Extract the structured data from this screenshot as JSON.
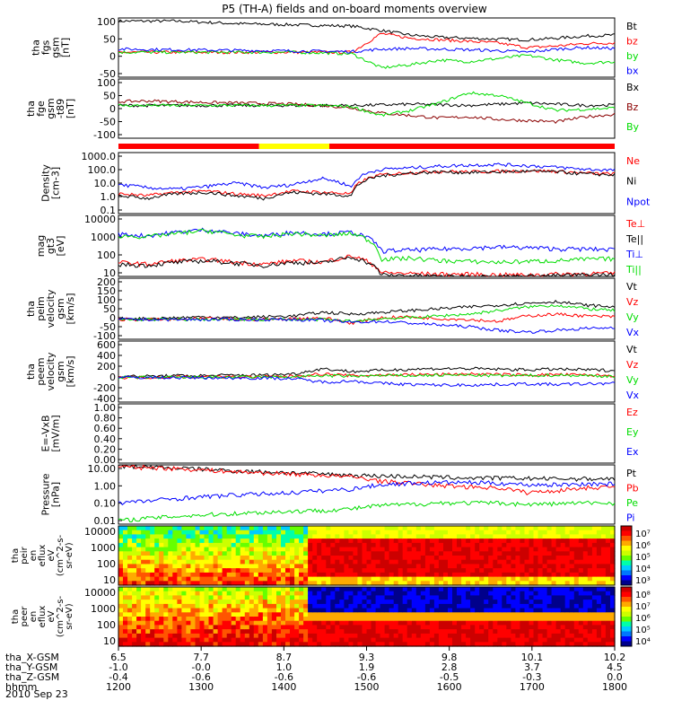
{
  "title": "P5 (TH-A) fields and on-board moments overview",
  "date": "2010 Sep 23",
  "chart_data": [
    {
      "type": "line",
      "ylabel": [
        "tha",
        "fgs",
        "gsm",
        "[nT]"
      ],
      "yticks": [
        "100",
        "50",
        "0",
        "-50"
      ],
      "ylim": [
        -80,
        110
      ],
      "series": [
        {
          "name": "Bt",
          "color": "#000000",
          "values": [
            100,
            100,
            100,
            96,
            92,
            90,
            88,
            86,
            84,
            70,
            55,
            48,
            45,
            42,
            40,
            45,
            52,
            55
          ]
        },
        {
          "name": "bz",
          "color": "#ff0000",
          "values": [
            0,
            0,
            0,
            0,
            0,
            0,
            0,
            0,
            0,
            60,
            45,
            40,
            35,
            30,
            15,
            20,
            28,
            30
          ]
        },
        {
          "name": "by",
          "color": "#00dd00",
          "values": [
            0,
            0,
            0,
            0,
            0,
            0,
            0,
            -2,
            -5,
            -50,
            -40,
            -25,
            -30,
            -20,
            -10,
            -25,
            -35,
            -30
          ]
        },
        {
          "name": "bx",
          "color": "#0000ff",
          "values": [
            10,
            9,
            8,
            7,
            6,
            5,
            4,
            3,
            2,
            10,
            12,
            10,
            8,
            5,
            0,
            10,
            15,
            12
          ]
        }
      ]
    },
    {
      "type": "line",
      "ylabel": [
        "tha",
        "fge",
        "gsm",
        "-t89",
        "[nT]"
      ],
      "yticks": [
        "100",
        "50",
        "0",
        "-50",
        "-100"
      ],
      "ylim": [
        -130,
        105
      ],
      "series": [
        {
          "name": "Bx",
          "color": "#000000",
          "values": [
            0,
            0,
            0,
            0,
            0,
            0,
            0,
            0,
            0,
            2,
            5,
            3,
            0,
            5,
            10,
            5,
            0,
            2
          ]
        },
        {
          "name": "Bz",
          "color": "#8b0000",
          "values": [
            15,
            18,
            15,
            12,
            10,
            8,
            5,
            0,
            -10,
            -30,
            -40,
            -50,
            -45,
            -55,
            -60,
            -65,
            -45,
            -35
          ]
        },
        {
          "name": "By",
          "color": "#00dd00",
          "values": [
            0,
            0,
            0,
            0,
            0,
            0,
            0,
            0,
            -5,
            -40,
            -20,
            10,
            50,
            40,
            10,
            -20,
            -15,
            -10
          ]
        }
      ]
    },
    {
      "type": "line",
      "ylabel": [
        "Density",
        "[cm-3]"
      ],
      "yticks": [
        "1000.0",
        "100.0",
        "10.0",
        "1.0",
        "0.1"
      ],
      "ylim": [
        0.1,
        1000
      ],
      "log": true,
      "series": [
        {
          "name": "Ne",
          "color": "#ff0000",
          "values": [
            2,
            1.5,
            2.5,
            3,
            2,
            1.5,
            3,
            2.5,
            2,
            35,
            50,
            60,
            55,
            60,
            65,
            60,
            45,
            40
          ]
        },
        {
          "name": "Ni",
          "color": "#000000",
          "values": [
            1.5,
            1,
            2,
            2.5,
            1.5,
            1,
            2.5,
            2,
            1.5,
            30,
            45,
            55,
            50,
            55,
            60,
            55,
            40,
            35
          ]
        },
        {
          "name": "Npot",
          "color": "#0000ff",
          "values": [
            8,
            5,
            4,
            6,
            10,
            5,
            8,
            20,
            5,
            80,
            100,
            130,
            150,
            170,
            140,
            110,
            80,
            70
          ]
        }
      ]
    },
    {
      "type": "line",
      "ylabel": [
        "mag",
        "gt3",
        "[eV]"
      ],
      "yticks": [
        "10000",
        "1000",
        "100",
        "10"
      ],
      "ylim": [
        10,
        10000
      ],
      "log": true,
      "series": [
        {
          "name": "Te⊥",
          "color": "#ff0000",
          "values": [
            50,
            40,
            60,
            70,
            50,
            40,
            60,
            50,
            100,
            15,
            14,
            13,
            13,
            12,
            12,
            13,
            14,
            14
          ]
        },
        {
          "name": "Te||",
          "color": "#000000",
          "values": [
            40,
            35,
            50,
            60,
            45,
            35,
            50,
            45,
            90,
            12,
            11,
            10,
            10,
            10,
            10,
            11,
            12,
            12
          ]
        },
        {
          "name": "Ti⊥",
          "color": "#0000ff",
          "values": [
            1200,
            1000,
            1500,
            2000,
            1300,
            1000,
            1500,
            1200,
            1500,
            180,
            200,
            220,
            250,
            280,
            260,
            230,
            220,
            210
          ]
        },
        {
          "name": "Ti||",
          "color": "#00dd00",
          "values": [
            1000,
            900,
            1300,
            1800,
            1100,
            900,
            1300,
            1000,
            1300,
            70,
            80,
            60,
            55,
            50,
            55,
            60,
            70,
            75
          ]
        }
      ]
    },
    {
      "type": "line",
      "ylabel": [
        "tha",
        "peim",
        "velocity",
        "gsm",
        "[km/s]"
      ],
      "yticks": [
        "200",
        "150",
        "100",
        "50",
        "0",
        "-50",
        "-100"
      ],
      "ylim": [
        -110,
        230
      ],
      "series": [
        {
          "name": "Vt",
          "color": "#000000",
          "values": [
            5,
            5,
            10,
            15,
            10,
            15,
            20,
            40,
            30,
            40,
            50,
            60,
            70,
            80,
            90,
            100,
            80,
            70
          ]
        },
        {
          "name": "Vz",
          "color": "#ff0000",
          "values": [
            0,
            0,
            0,
            5,
            0,
            0,
            5,
            10,
            -20,
            10,
            15,
            5,
            0,
            -10,
            20,
            30,
            20,
            15
          ]
        },
        {
          "name": "Vy",
          "color": "#00dd00",
          "values": [
            0,
            0,
            0,
            0,
            0,
            0,
            0,
            0,
            -10,
            5,
            10,
            20,
            30,
            50,
            70,
            80,
            60,
            50
          ]
        },
        {
          "name": "Vx",
          "color": "#0000ff",
          "values": [
            0,
            0,
            0,
            0,
            0,
            0,
            0,
            -5,
            -15,
            -10,
            -20,
            -30,
            -40,
            -60,
            -70,
            -60,
            -50,
            -45
          ]
        }
      ]
    },
    {
      "type": "line",
      "ylabel": [
        "tha",
        "peem",
        "velocity",
        "gsm",
        "[km/s]"
      ],
      "yticks": [
        "600",
        "400",
        "200",
        "0",
        "-200",
        "-400"
      ],
      "ylim": [
        -420,
        620
      ],
      "series": [
        {
          "name": "Vt",
          "color": "#000000",
          "values": [
            20,
            20,
            30,
            30,
            40,
            40,
            60,
            150,
            100,
            120,
            140,
            150,
            150,
            140,
            130,
            140,
            130,
            120
          ]
        },
        {
          "name": "Vz",
          "color": "#ff0000",
          "values": [
            0,
            0,
            10,
            10,
            10,
            10,
            20,
            60,
            30,
            40,
            50,
            50,
            60,
            50,
            40,
            50,
            40,
            30
          ]
        },
        {
          "name": "Vy",
          "color": "#00dd00",
          "values": [
            0,
            0,
            0,
            5,
            5,
            5,
            10,
            30,
            20,
            30,
            30,
            40,
            40,
            30,
            30,
            40,
            30,
            20
          ]
        },
        {
          "name": "Vx",
          "color": "#0000ff",
          "values": [
            0,
            0,
            -5,
            -5,
            -10,
            -10,
            -20,
            -80,
            -60,
            -100,
            -120,
            -130,
            -130,
            -120,
            -110,
            -120,
            -110,
            -100
          ]
        }
      ]
    },
    {
      "type": "line",
      "ylabel": [
        "E=-VxB",
        "[mV/m]"
      ],
      "yticks": [
        "1.00",
        "0.80",
        "0.60",
        "0.40",
        "0.20",
        "0.00"
      ],
      "ylim": [
        0,
        1
      ],
      "series": [
        {
          "name": "Ez",
          "color": "#ff0000",
          "values": []
        },
        {
          "name": "Ey",
          "color": "#00dd00",
          "values": []
        },
        {
          "name": "Ex",
          "color": "#0000ff",
          "values": []
        }
      ]
    },
    {
      "type": "line",
      "ylabel": [
        "Pressure",
        "[nPa]"
      ],
      "yticks": [
        "10.00",
        "1.00",
        "0.10",
        "0.01"
      ],
      "ylim": [
        0.01,
        10
      ],
      "log": true,
      "series": [
        {
          "name": "Pt",
          "color": "#000000",
          "values": [
            9,
            8,
            7,
            6,
            5,
            4.5,
            4,
            3.5,
            3,
            2.8,
            2.6,
            2.4,
            2.2,
            2.2,
            2.1,
            2.0,
            2.0,
            2.0
          ]
        },
        {
          "name": "Pb",
          "color": "#ff0000",
          "values": [
            8,
            7.5,
            6.5,
            5.5,
            4.5,
            4,
            3.5,
            3,
            2.5,
            1.5,
            1.2,
            0.9,
            0.8,
            0.7,
            0.4,
            0.5,
            0.7,
            0.8
          ]
        },
        {
          "name": "Pe",
          "color": "#00dd00",
          "values": [
            0.015,
            0.02,
            0.025,
            0.03,
            0.035,
            0.04,
            0.045,
            0.05,
            0.06,
            0.09,
            0.1,
            0.12,
            0.12,
            0.12,
            0.1,
            0.11,
            0.12,
            0.12
          ]
        },
        {
          "name": "Pi",
          "color": "#0000ff",
          "values": [
            0.12,
            0.15,
            0.2,
            0.25,
            0.3,
            0.35,
            0.4,
            0.5,
            0.6,
            1.0,
            1.2,
            1.3,
            1.3,
            1.2,
            1.0,
            1.0,
            1.1,
            1.1
          ]
        }
      ]
    },
    {
      "type": "heatmap",
      "ylabel": [
        "tha",
        "peir",
        "en",
        "eflux",
        "eV",
        "(cm^2-s-",
        "sr-eV)"
      ],
      "yticks": [
        "10000",
        "1000",
        "100",
        "10"
      ],
      "colorbar_ticks": [
        "10⁷",
        "10⁶",
        "10⁵",
        "10⁴",
        "10³"
      ]
    },
    {
      "type": "heatmap",
      "ylabel": [
        "tha",
        "peer",
        "en",
        "eflux",
        "eV",
        "(cm^2-s-",
        "sr-eV)"
      ],
      "yticks": [
        "10000",
        "1000",
        "100",
        "10"
      ],
      "colorbar_ticks": [
        "10⁸",
        "10⁷",
        "10⁶",
        "10⁵",
        "10⁴"
      ]
    }
  ],
  "x_axis": {
    "xlim": [
      1200,
      1800
    ],
    "row_labels": [
      "tha_X-GSM",
      "tha_Y-GSM",
      "tha_Z-GSM",
      "hhmm"
    ],
    "rows": [
      [
        "6.5",
        "7.7",
        "8.7",
        "9.3",
        "9.8",
        "10.1",
        "10.2"
      ],
      [
        "-1.0",
        "-0.0",
        "1.0",
        "1.9",
        "2.8",
        "3.7",
        "4.5"
      ],
      [
        "-0.4",
        "-0.6",
        "-0.6",
        "-0.6",
        "-0.5",
        "-0.3",
        "0.0"
      ],
      [
        "1200",
        "1300",
        "1400",
        "1500",
        "1600",
        "1700",
        "1800"
      ]
    ]
  },
  "mode_bar": {
    "segments": [
      {
        "start": 1200,
        "end": 1370,
        "color": "#ff0000"
      },
      {
        "start": 1370,
        "end": 1455,
        "color": "#ffff00"
      },
      {
        "start": 1455,
        "end": 1800,
        "color": "#ff0000"
      }
    ]
  }
}
